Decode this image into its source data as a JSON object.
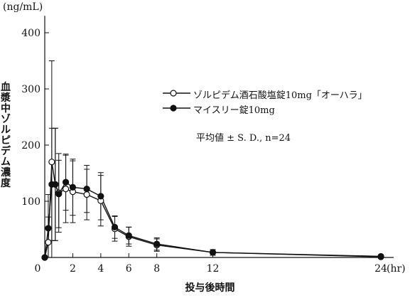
{
  "chart_data": {
    "type": "line",
    "ylabel_unit": "(ng/mL)",
    "ylabel": "血漿中ゾルピデム濃度",
    "xlabel": "投与後時間",
    "x_unit_label": "(hr)",
    "xlim": [
      0,
      24
    ],
    "ylim": [
      0,
      430
    ],
    "x_ticks": [
      0,
      2,
      4,
      6,
      8,
      12,
      24
    ],
    "y_ticks": [
      0,
      100,
      200,
      300,
      400
    ],
    "note": "平均値 ± S. D., n=24",
    "series": [
      {
        "name": "ゾルピデム酒石酸塩錠10mg「オーハラ」",
        "marker": "open-circle",
        "x": [
          0,
          0.25,
          0.5,
          0.75,
          1,
          1.5,
          2,
          3,
          4,
          5,
          6,
          8,
          12,
          24
        ],
        "y": [
          0,
          27,
          170,
          130,
          115,
          122,
          117,
          112,
          101,
          51,
          37,
          22,
          9,
          1
        ],
        "sd": [
          0,
          45,
          180,
          100,
          70,
          60,
          55,
          45,
          45,
          22,
          17,
          11,
          5,
          2
        ]
      },
      {
        "name": "マイスリー錠10mg",
        "marker": "filled-circle",
        "x": [
          0,
          0.25,
          0.5,
          0.75,
          1,
          1.5,
          2,
          3,
          4,
          5,
          6,
          8,
          12,
          24
        ],
        "y": [
          0,
          52,
          130,
          130,
          113,
          134,
          125,
          122,
          109,
          54,
          39,
          24,
          9,
          2
        ],
        "sd": [
          0,
          60,
          100,
          100,
          60,
          50,
          50,
          42,
          42,
          20,
          15,
          11,
          5,
          2
        ]
      }
    ],
    "colors": {
      "line": "#111111",
      "open_fill": "#ffffff",
      "filled_fill": "#111111"
    }
  }
}
